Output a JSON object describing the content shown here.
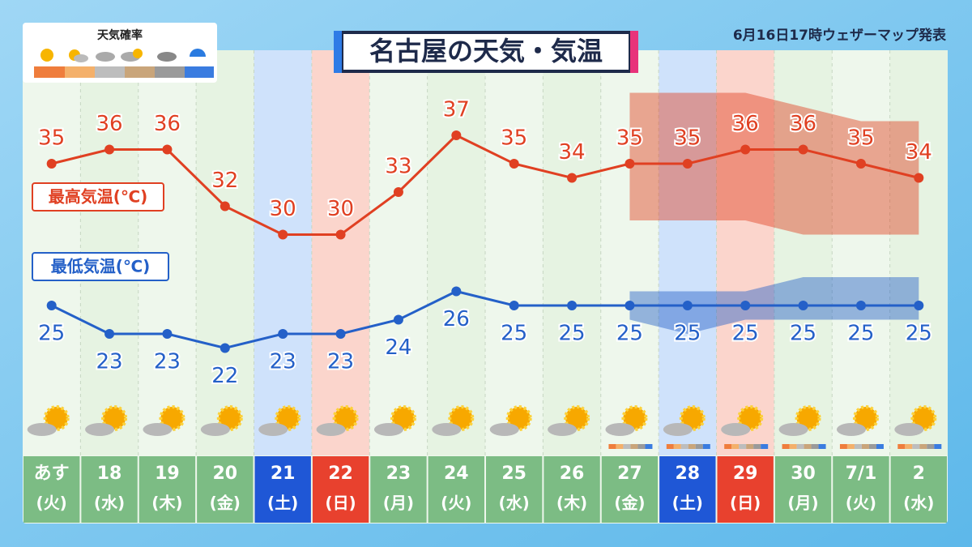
{
  "chart_data": {
    "type": "line",
    "title": "名古屋の天気・気温",
    "subtitle": "6月16日17時ウェザーマップ発表",
    "legend_title": "天気確率",
    "categories": [
      "あす",
      "18",
      "19",
      "20",
      "21",
      "22",
      "23",
      "24",
      "25",
      "26",
      "27",
      "28",
      "29",
      "30",
      "7/1",
      "2"
    ],
    "weekdays": [
      "(火)",
      "(水)",
      "(木)",
      "(金)",
      "(土)",
      "(日)",
      "(月)",
      "(火)",
      "(水)",
      "(木)",
      "(金)",
      "(土)",
      "(日)",
      "(月)",
      "(火)",
      "(水)"
    ],
    "ylim": [
      20,
      41
    ],
    "series": [
      {
        "name": "最高気温(℃)",
        "color": "#e04022",
        "values": [
          35,
          36,
          36,
          32,
          30,
          30,
          33,
          37,
          35,
          34,
          35,
          35,
          36,
          36,
          35,
          34
        ],
        "range_upper": [
          null,
          null,
          null,
          null,
          null,
          null,
          null,
          null,
          null,
          null,
          40,
          40,
          40,
          39,
          38,
          38
        ],
        "range_lower": [
          null,
          null,
          null,
          null,
          null,
          null,
          null,
          null,
          null,
          null,
          31,
          31,
          31,
          30,
          30,
          30
        ]
      },
      {
        "name": "最低気温(℃)",
        "color": "#2460c8",
        "values": [
          25,
          23,
          23,
          22,
          23,
          23,
          24,
          26,
          25,
          25,
          25,
          25,
          25,
          25,
          25,
          25
        ],
        "range_upper": [
          null,
          null,
          null,
          null,
          null,
          null,
          null,
          null,
          null,
          null,
          26,
          26,
          26,
          27,
          27,
          27
        ],
        "range_lower": [
          null,
          null,
          null,
          null,
          null,
          null,
          null,
          null,
          null,
          null,
          24,
          23,
          24,
          24,
          24,
          24
        ]
      }
    ]
  }
}
